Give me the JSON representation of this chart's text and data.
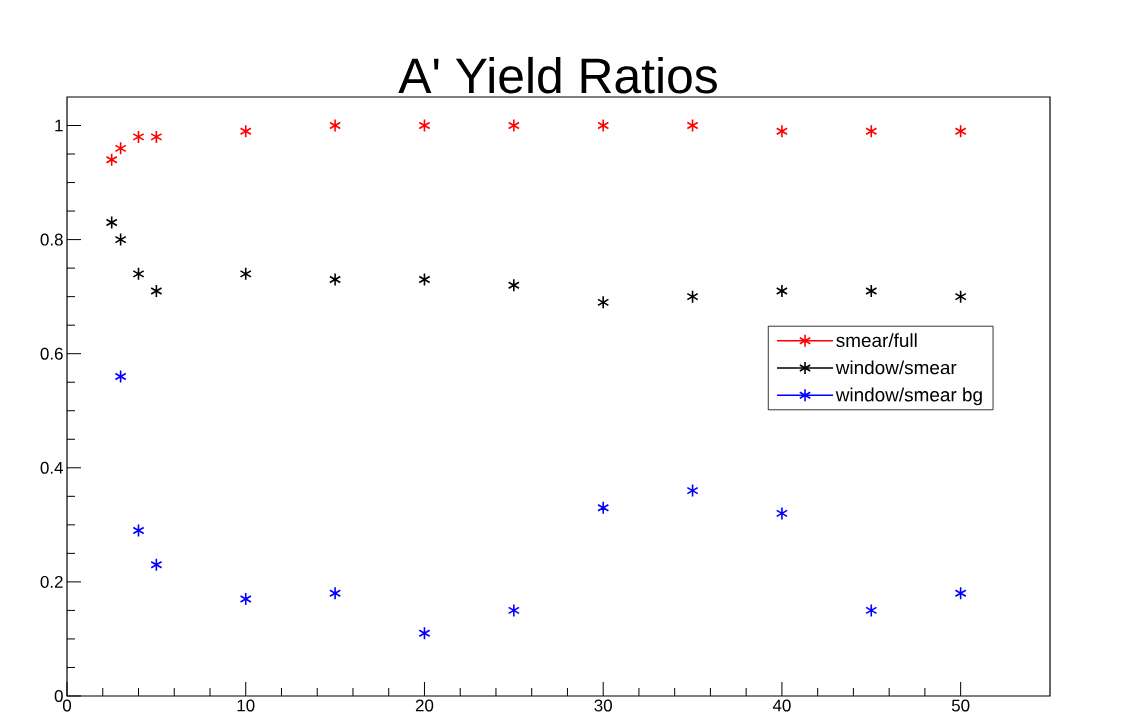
{
  "chart_data": {
    "type": "scatter",
    "title": "A' Yield Ratios",
    "xlim": [
      0,
      55
    ],
    "xticks": [
      0,
      10,
      20,
      30,
      40,
      50
    ],
    "ylim": [
      0,
      1.05
    ],
    "yticks": [
      0,
      0.2,
      0.4,
      0.6,
      0.8,
      1
    ],
    "marker": "cross",
    "legend": "right",
    "grid": false,
    "series": [
      {
        "name": "smear/full",
        "color": "#ff0000",
        "x": [
          2.5,
          3,
          4,
          5,
          10,
          15,
          20,
          25,
          30,
          35,
          40,
          45,
          50
        ],
        "values": [
          0.94,
          0.96,
          0.98,
          0.98,
          0.99,
          1.0,
          1.0,
          1.0,
          1.0,
          1.0,
          0.99,
          0.99,
          0.99
        ]
      },
      {
        "name": "window/smear",
        "color": "#000000",
        "x": [
          2.5,
          3,
          4,
          5,
          10,
          15,
          20,
          25,
          30,
          35,
          40,
          45,
          50
        ],
        "values": [
          0.83,
          0.8,
          0.74,
          0.71,
          0.74,
          0.73,
          0.73,
          0.72,
          0.69,
          0.7,
          0.71,
          0.71,
          0.7
        ]
      },
      {
        "name": "window/smear bg",
        "color": "#0000ff",
        "x": [
          3,
          4,
          5,
          10,
          15,
          20,
          25,
          30,
          35,
          40,
          45,
          50
        ],
        "values": [
          0.56,
          0.29,
          0.23,
          0.17,
          0.18,
          0.11,
          0.15,
          0.33,
          0.36,
          0.32,
          0.15,
          0.18
        ]
      }
    ]
  }
}
